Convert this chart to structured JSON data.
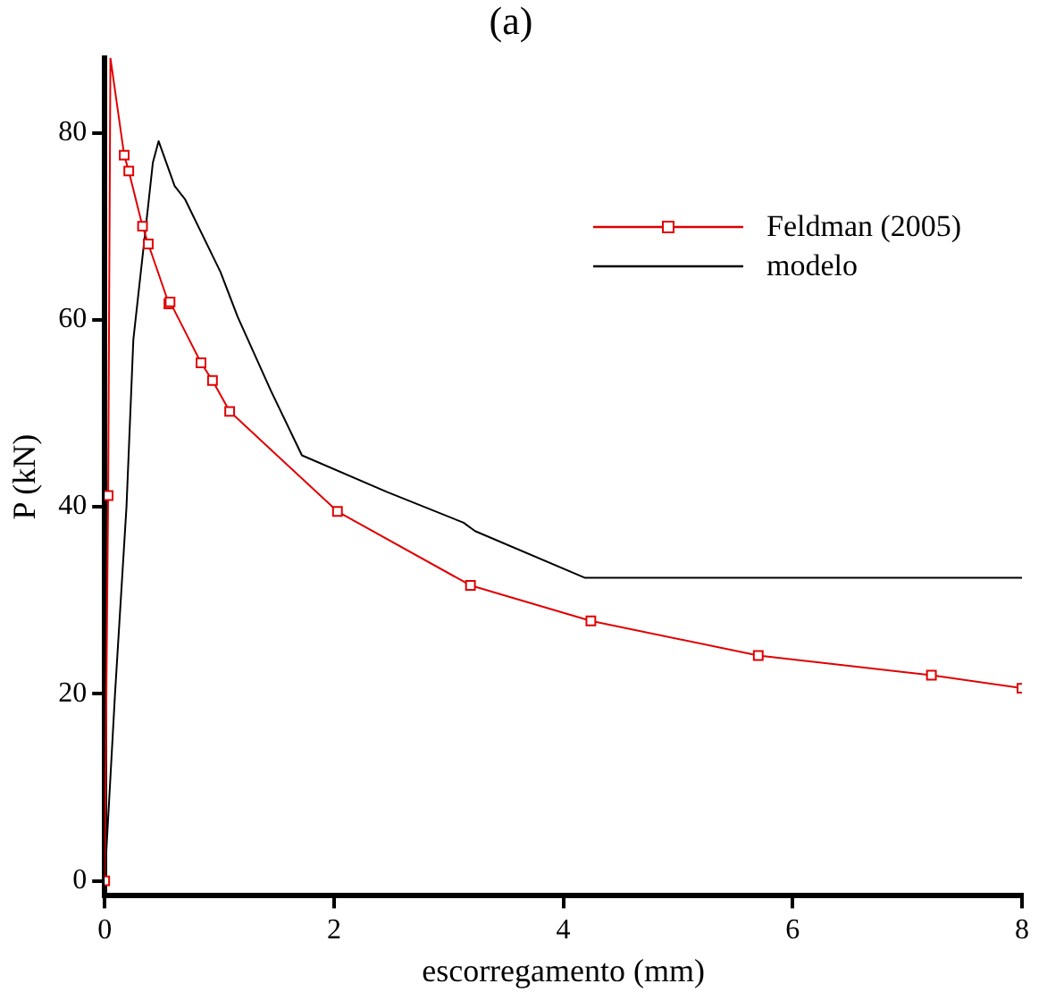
{
  "chart_data": {
    "type": "line",
    "title": "(a)",
    "xlabel": "escorregamento (mm)",
    "ylabel": "P (kN)",
    "xlim": [
      0,
      8
    ],
    "xticks": [
      0,
      2,
      4,
      6,
      8
    ],
    "ylim": [
      -1.6,
      88
    ],
    "yticks": [
      0,
      20,
      40,
      60,
      80
    ],
    "grid": false,
    "legend": "top right",
    "series": [
      {
        "name": "Feldman (2005)",
        "color": "#e00000",
        "marker": "square",
        "x": [
          0,
          0.03,
          0.05,
          0.17,
          0.21,
          0.33,
          0.38,
          0.56,
          0.57,
          0.84,
          0.94,
          1.09,
          2.03,
          3.19,
          4.24,
          5.7,
          7.21,
          8
        ],
        "values": [
          0,
          41.2,
          88,
          77.6,
          75.9,
          70,
          68.1,
          61.7,
          61.9,
          55.4,
          53.5,
          50.2,
          39.5,
          31.6,
          27.8,
          24.1,
          22,
          20.6
        ]
      },
      {
        "name": "modelo",
        "color": "#000000",
        "marker": "none",
        "x": [
          0,
          0.09,
          0.19,
          0.25,
          0.38,
          0.42,
          0.47,
          0.61,
          0.7,
          1.01,
          1.16,
          1.45,
          1.72,
          2.46,
          3.13,
          3.23,
          4.19,
          8
        ],
        "values": [
          0,
          20,
          40,
          57.9,
          72.3,
          76.8,
          79.1,
          74.3,
          72.9,
          65.1,
          60.3,
          52.4,
          45.5,
          41.6,
          38.3,
          37.4,
          32.4,
          32.4
        ]
      }
    ]
  }
}
